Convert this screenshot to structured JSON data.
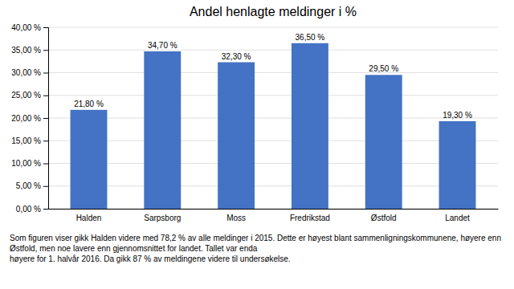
{
  "chart_data": {
    "type": "bar",
    "title": "Andel henlagte meldinger i %",
    "categories": [
      "Halden",
      "Sarpsborg",
      "Moss",
      "Fredrikstad",
      "Østfold",
      "Landet"
    ],
    "values": [
      21.8,
      34.7,
      32.3,
      36.5,
      29.5,
      19.3
    ],
    "value_labels": [
      "21,80 %",
      "34,70 %",
      "32,30 %",
      "36,50 %",
      "29,50 %",
      "19,30 %"
    ],
    "color": "#4472C4",
    "ylim": [
      0,
      40
    ],
    "yticks": [
      {
        "value": 0,
        "label": "0,00 %"
      },
      {
        "value": 5,
        "label": "5,00 %"
      },
      {
        "value": 10,
        "label": "10,00 %"
      },
      {
        "value": 15,
        "label": "15,00 %"
      },
      {
        "value": 20,
        "label": "20,00 %"
      },
      {
        "value": 25,
        "label": "25,00 %"
      },
      {
        "value": 30,
        "label": "30,00 %"
      },
      {
        "value": 35,
        "label": "35,00 %"
      },
      {
        "value": 40,
        "label": "40,00 %"
      }
    ],
    "grid": true,
    "caption": "Som figuren viser gikk Halden videre med 78,2 % av alle meldinger i 2015. Dette er høyest blant sammenligningskommunene, høyere enn Østfold, men noe lavere enn gjennomsnittet for landet. Tallet var enda\nhøyere for 1. halvår 2016. Da gikk 87 % av meldingene videre til undersøkelse."
  }
}
